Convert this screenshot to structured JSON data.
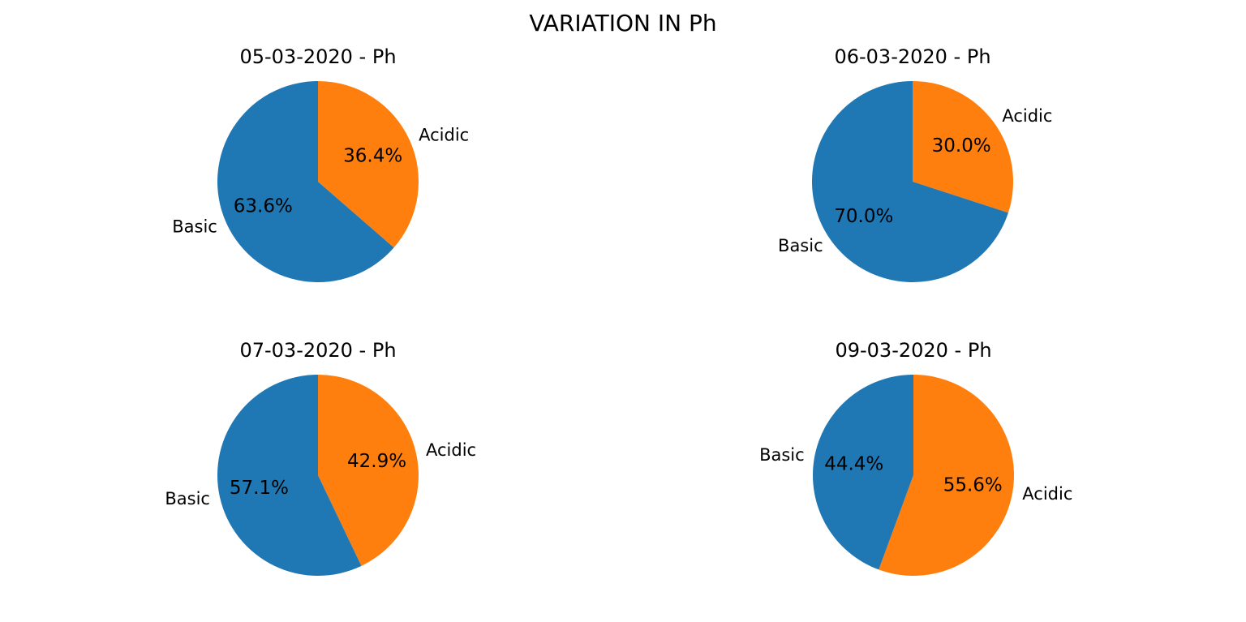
{
  "chart_data": {
    "suptitle": "VARIATION IN Ph",
    "charts": [
      {
        "type": "pie",
        "title": "05-03-2020 - Ph",
        "labels": [
          "Acidic",
          "Basic"
        ],
        "values": [
          36.4,
          63.6
        ],
        "pct_labels": [
          "36.4%",
          "63.6%"
        ],
        "colors": [
          "#ff7f0e",
          "#1f77b4"
        ],
        "start_angle": "top",
        "direction": "clockwise"
      },
      {
        "type": "pie",
        "title": "06-03-2020 - Ph",
        "labels": [
          "Acidic",
          "Basic"
        ],
        "values": [
          30.0,
          70.0
        ],
        "pct_labels": [
          "30.0%",
          "70.0%"
        ],
        "colors": [
          "#ff7f0e",
          "#1f77b4"
        ],
        "start_angle": "top",
        "direction": "clockwise"
      },
      {
        "type": "pie",
        "title": "07-03-2020 - Ph",
        "labels": [
          "Acidic",
          "Basic"
        ],
        "values": [
          42.9,
          57.1
        ],
        "pct_labels": [
          "42.9%",
          "57.1%"
        ],
        "colors": [
          "#ff7f0e",
          "#1f77b4"
        ],
        "start_angle": "top",
        "direction": "clockwise"
      },
      {
        "type": "pie",
        "title": "09-03-2020 - Ph",
        "labels": [
          "Acidic",
          "Basic"
        ],
        "values": [
          55.6,
          44.4
        ],
        "pct_labels": [
          "55.6%",
          "44.4%"
        ],
        "colors": [
          "#ff7f0e",
          "#1f77b4"
        ],
        "start_angle": "top",
        "direction": "clockwise"
      }
    ]
  }
}
